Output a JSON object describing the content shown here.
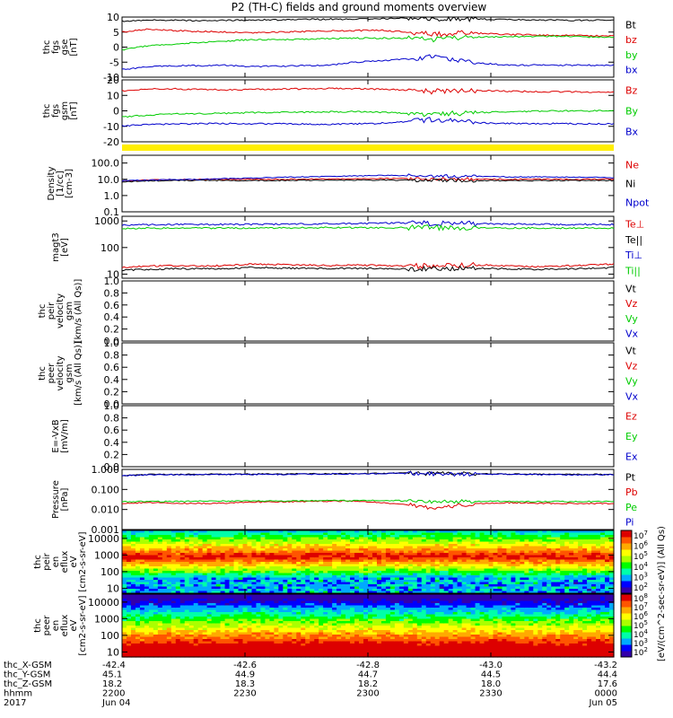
{
  "chart_data": {
    "type": "line",
    "title": "P2 (TH-C) fields and ground moments overview",
    "time_axis": {
      "rows": [
        {
          "name": "thc_X-GSM",
          "values": [
            "-42.4",
            "-42.6",
            "-42.8",
            "-43.0",
            "-43.2"
          ]
        },
        {
          "name": "thc_Y-GSM",
          "values": [
            "45.1",
            "44.9",
            "44.7",
            "44.5",
            "44.4"
          ]
        },
        {
          "name": "thc_Z-GSM",
          "values": [
            "18.2",
            "18.3",
            "18.2",
            "18.0",
            "17.6"
          ]
        },
        {
          "name": "hhmm",
          "values": [
            "2200",
            "2230",
            "2300",
            "2330",
            "0000"
          ]
        },
        {
          "name": "2017",
          "values": [
            "Jun 04",
            "",
            "",
            "",
            "Jun 05"
          ]
        }
      ],
      "hours": [
        22.0,
        24.0
      ]
    },
    "panels": [
      {
        "id": "fgs-gse",
        "kind": "line",
        "ylabel": [
          "thc",
          "fgs",
          "gse",
          "[nT]"
        ],
        "ytick_labels": [
          "10",
          "5",
          "0",
          "-5",
          "-10"
        ],
        "ylim": [
          -10,
          10
        ],
        "legend": [
          {
            "label": "Bt",
            "color": "#000000"
          },
          {
            "label": "bz",
            "color": "#dd0000"
          },
          {
            "label": "by",
            "color": "#00cc00"
          },
          {
            "label": "bx",
            "color": "#0000cc"
          }
        ],
        "series": [
          {
            "label": "Bt",
            "color": "#000000",
            "y": [
              8.6,
              8.9,
              9.0,
              8.8,
              8.9,
              9.0,
              9.1,
              9.2,
              9.3,
              9.3,
              9.4,
              9.8,
              9.5,
              9.4,
              9.3,
              9.1,
              9.0,
              8.9,
              8.9,
              9.0
            ]
          },
          {
            "label": "bz",
            "color": "#dd0000",
            "y": [
              5.0,
              6.0,
              5.5,
              5.2,
              5.0,
              4.8,
              5.0,
              5.2,
              5.4,
              5.5,
              5.6,
              5.0,
              4.2,
              4.8,
              4.5,
              4.2,
              4.0,
              3.9,
              3.8,
              3.8
            ]
          },
          {
            "label": "by",
            "color": "#00cc00",
            "y": [
              -1.0,
              0.5,
              1.0,
              1.5,
              2.0,
              2.5,
              2.5,
              2.6,
              2.8,
              3.0,
              3.0,
              3.0,
              2.5,
              3.2,
              3.4,
              3.5,
              3.6,
              3.6,
              3.4,
              3.2
            ]
          },
          {
            "label": "bx",
            "color": "#0000cc",
            "y": [
              -7.5,
              -6.5,
              -6.2,
              -6.2,
              -6.0,
              -6.5,
              -6.3,
              -6.2,
              -6.0,
              -5.0,
              -4.5,
              -4.0,
              -3.0,
              -4.5,
              -5.5,
              -6.0,
              -6.0,
              -6.0,
              -6.0,
              -6.0
            ]
          }
        ]
      },
      {
        "id": "fgs-gsm",
        "kind": "line",
        "ylabel": [
          "thc",
          "fgs",
          "gsm",
          "[nT]"
        ],
        "ytick_labels": [
          "20",
          "10",
          "0",
          "-10",
          "-20"
        ],
        "ylim": [
          -20,
          20
        ],
        "legend": [
          {
            "label": "Bz",
            "color": "#dd0000"
          },
          {
            "label": "By",
            "color": "#00cc00"
          },
          {
            "label": "Bx",
            "color": "#0000cc"
          }
        ],
        "series": [
          {
            "label": "Bz",
            "color": "#dd0000",
            "y": [
              13.0,
              14.0,
              14.2,
              13.8,
              13.6,
              13.8,
              14.0,
              14.2,
              14.4,
              14.3,
              14.0,
              13.5,
              12.5,
              13.2,
              13.0,
              12.6,
              12.4,
              12.3,
              12.2,
              12.2
            ]
          },
          {
            "label": "By",
            "color": "#00cc00",
            "y": [
              -4.0,
              -2.8,
              -2.0,
              -1.8,
              -1.5,
              -1.2,
              -1.0,
              -0.8,
              -0.6,
              -0.5,
              -1.0,
              -1.5,
              -2.5,
              -1.5,
              -1.0,
              -0.6,
              -0.3,
              0.0,
              0.0,
              0.2
            ]
          },
          {
            "label": "Bx",
            "color": "#0000cc",
            "y": [
              -9.8,
              -8.8,
              -8.5,
              -8.3,
              -8.2,
              -8.3,
              -8.4,
              -8.5,
              -8.6,
              -8.4,
              -8.0,
              -7.0,
              -5.5,
              -6.8,
              -7.8,
              -8.2,
              -8.2,
              -8.3,
              -8.4,
              -8.5
            ]
          }
        ]
      },
      {
        "id": "mode-bar",
        "kind": "bar",
        "color": "#ffee00"
      },
      {
        "id": "density",
        "kind": "line",
        "ylabel": [
          "Density",
          "[1/cc]",
          "[cm-3]"
        ],
        "ytick_labels": [
          "100.0",
          "10.0",
          "1.0",
          "0.1"
        ],
        "yscale": "log",
        "ylim": [
          0.1,
          300
        ],
        "legend": [
          {
            "label": "Ne",
            "color": "#dd0000"
          },
          {
            "label": "Ni",
            "color": "#000000"
          },
          {
            "label": "Npot",
            "color": "#0000cc"
          }
        ],
        "series": [
          {
            "label": "Ne",
            "color": "#dd0000",
            "y": [
              8.0,
              9.0,
              9.5,
              10.0,
              10.0,
              10.0,
              10.0,
              10.0,
              10.5,
              10.5,
              11.0,
              11.0,
              10.5,
              10.5,
              10.0,
              10.0,
              10.0,
              10.0,
              10.0,
              10.0
            ]
          },
          {
            "label": "Ni",
            "color": "#000000",
            "y": [
              7.0,
              8.0,
              8.5,
              8.5,
              8.5,
              8.3,
              8.5,
              8.5,
              8.8,
              8.8,
              9.0,
              8.8,
              8.5,
              8.5,
              8.3,
              8.3,
              8.3,
              8.5,
              8.3,
              8.3
            ]
          },
          {
            "label": "Npot",
            "color": "#0000cc",
            "y": [
              8.0,
              9.0,
              9.5,
              10.0,
              11.0,
              12.0,
              13.0,
              14.0,
              15.0,
              16.0,
              17.0,
              17.0,
              16.0,
              15.0,
              15.0,
              14.0,
              14.0,
              13.5,
              13.0,
              13.0
            ]
          }
        ]
      },
      {
        "id": "temperature",
        "kind": "line",
        "ylabel": [
          "magt3",
          "[eV]"
        ],
        "ytick_labels": [
          "1000",
          "100",
          "10"
        ],
        "yscale": "log",
        "ylim": [
          7,
          1500
        ],
        "legend": [
          {
            "label": "Te⊥",
            "color": "#dd0000"
          },
          {
            "label": "Te||",
            "color": "#000000"
          },
          {
            "label": "Ti⊥",
            "color": "#0000cc"
          },
          {
            "label": "Ti||",
            "color": "#00cc00"
          }
        ],
        "series": [
          {
            "label": "Te⊥",
            "color": "#dd0000",
            "y": [
              18.0,
              20.0,
              21.0,
              20.0,
              21.0,
              24.0,
              23.0,
              22.0,
              21.0,
              22.0,
              21.0,
              20.0,
              20.0,
              21.0,
              22.0,
              20.0,
              19.0,
              20.0,
              22.0,
              24.0
            ]
          },
          {
            "label": "Te||",
            "color": "#000000",
            "y": [
              14.0,
              15.0,
              16.0,
              16.0,
              16.0,
              18.0,
              17.0,
              16.5,
              16.0,
              16.5,
              16.0,
              15.5,
              15.5,
              16.0,
              16.5,
              15.5,
              15.0,
              15.5,
              16.5,
              17.5
            ]
          },
          {
            "label": "Ti⊥",
            "color": "#0000cc",
            "y": [
              700,
              720,
              730,
              740,
              740,
              750,
              760,
              770,
              780,
              800,
              820,
              850,
              830,
              800,
              780,
              760,
              750,
              740,
              740,
              740
            ]
          },
          {
            "label": "Ti||",
            "color": "#00cc00",
            "y": [
              520,
              530,
              540,
              540,
              540,
              545,
              550,
              555,
              560,
              560,
              560,
              560,
              560,
              555,
              550,
              545,
              540,
              540,
              540,
              540
            ]
          }
        ]
      },
      {
        "id": "peir-velocity",
        "kind": "empty",
        "ylabel": [
          "thc",
          "peir",
          "velocity",
          "gsm",
          "[km/s (All Qs)]"
        ],
        "ytick_labels": [
          "1.0",
          "0.8",
          "0.6",
          "0.4",
          "0.2",
          "0.0"
        ],
        "ylim": [
          0,
          1
        ],
        "legend": [
          {
            "label": "Vt",
            "color": "#000000"
          },
          {
            "label": "Vz",
            "color": "#dd0000"
          },
          {
            "label": "Vy",
            "color": "#00cc00"
          },
          {
            "label": "Vx",
            "color": "#0000cc"
          }
        ],
        "series": []
      },
      {
        "id": "peer-velocity",
        "kind": "empty",
        "ylabel": [
          "thc",
          "peer",
          "velocity",
          "gsm",
          "[km/s (All Qs)]"
        ],
        "ytick_labels": [
          "1.0",
          "0.8",
          "0.6",
          "0.4",
          "0.2",
          "0.0"
        ],
        "ylim": [
          0,
          1
        ],
        "legend": [
          {
            "label": "Vt",
            "color": "#000000"
          },
          {
            "label": "Vz",
            "color": "#dd0000"
          },
          {
            "label": "Vy",
            "color": "#00cc00"
          },
          {
            "label": "Vx",
            "color": "#0000cc"
          }
        ],
        "series": []
      },
      {
        "id": "efield",
        "kind": "empty",
        "ylabel": [
          "E=-VxB",
          "[mV/m]"
        ],
        "ytick_labels": [
          "1.0",
          "0.8",
          "0.6",
          "0.4",
          "0.2",
          "0.0"
        ],
        "ylim": [
          0,
          1
        ],
        "legend": [
          {
            "label": "Ez",
            "color": "#dd0000"
          },
          {
            "label": "Ey",
            "color": "#00cc00"
          },
          {
            "label": "Ex",
            "color": "#0000cc"
          }
        ],
        "series": []
      },
      {
        "id": "pressure",
        "kind": "line",
        "ylabel": [
          "Pressure",
          "[nPa]"
        ],
        "ytick_labels": [
          "1.000",
          "0.100",
          "0.010",
          "0.001"
        ],
        "yscale": "log",
        "ylim": [
          0.001,
          1
        ],
        "legend": [
          {
            "label": "Pt",
            "color": "#000000"
          },
          {
            "label": "Pb",
            "color": "#dd0000"
          },
          {
            "label": "Pe",
            "color": "#00cc00"
          },
          {
            "label": "Pi",
            "color": "#0000cc"
          }
        ],
        "series": [
          {
            "label": "Pt",
            "color": "#000000",
            "y": [
              0.5,
              0.55,
              0.56,
              0.57,
              0.58,
              0.58,
              0.58,
              0.6,
              0.6,
              0.62,
              0.64,
              0.65,
              0.62,
              0.6,
              0.6,
              0.58,
              0.57,
              0.56,
              0.56,
              0.56
            ]
          },
          {
            "label": "Pi",
            "color": "#0000cc",
            "y": [
              0.48,
              0.53,
              0.54,
              0.55,
              0.56,
              0.56,
              0.56,
              0.58,
              0.58,
              0.6,
              0.62,
              0.63,
              0.6,
              0.58,
              0.58,
              0.56,
              0.55,
              0.54,
              0.54,
              0.54
            ]
          },
          {
            "label": "Pb",
            "color": "#dd0000",
            "y": [
              0.02,
              0.022,
              0.021,
              0.02,
              0.021,
              0.023,
              0.024,
              0.025,
              0.026,
              0.026,
              0.022,
              0.018,
              0.012,
              0.016,
              0.02,
              0.022,
              0.021,
              0.02,
              0.02,
              0.02
            ]
          },
          {
            "label": "Pe",
            "color": "#00cc00",
            "y": [
              0.024,
              0.025,
              0.025,
              0.026,
              0.026,
              0.026,
              0.027,
              0.027,
              0.028,
              0.028,
              0.028,
              0.027,
              0.026,
              0.026,
              0.026,
              0.025,
              0.025,
              0.025,
              0.025,
              0.025
            ]
          }
        ]
      },
      {
        "id": "peir-spectrogram",
        "kind": "spectrogram",
        "species": "ion",
        "ylabel": [
          "thc",
          "peir",
          "en",
          "eflux",
          "eV",
          "[cm2-s-sr-eV]"
        ],
        "ytick_labels": [
          "10000",
          "1000",
          "100",
          "10"
        ],
        "yscale": "log",
        "ylim": [
          5,
          30000
        ],
        "peak_energy_ev": [
          700,
          720,
          730,
          740,
          740,
          750,
          760,
          770,
          780,
          800,
          820,
          850,
          830,
          800,
          780,
          760,
          750,
          740,
          740,
          740
        ]
      },
      {
        "id": "peer-spectrogram",
        "kind": "spectrogram",
        "species": "electron",
        "ylabel": [
          "thc",
          "peer",
          "en",
          "eflux",
          "eV",
          "[cm2-s-sr-eV]"
        ],
        "ytick_labels": [
          "10000",
          "1000",
          "100",
          "10"
        ],
        "yscale": "log",
        "ylim": [
          5,
          30000
        ],
        "peak_energy_ev": [
          18,
          20,
          21,
          20,
          21,
          24,
          23,
          22,
          21,
          22,
          21,
          20,
          20,
          21,
          22,
          20,
          19,
          20,
          22,
          24
        ]
      }
    ],
    "colorbar": {
      "label": "[eV/(cm^2-sec-sr-eV)] (All Qs)",
      "panels": [
        {
          "id": "peir-spectrogram",
          "tick_labels": [
            "10^7",
            "10^6",
            "10^5",
            "10^4",
            "10^3",
            "10^2"
          ]
        },
        {
          "id": "peer-spectrogram",
          "tick_labels": [
            "10^8",
            "10^7",
            "10^6",
            "10^5",
            "10^4",
            "10^3",
            "10^2"
          ]
        }
      ],
      "colors": [
        "#3300aa",
        "#0000ff",
        "#00aaff",
        "#00ffaa",
        "#00ff00",
        "#aaff00",
        "#ffff00",
        "#ffaa00",
        "#ff5500",
        "#dd0000"
      ]
    }
  }
}
